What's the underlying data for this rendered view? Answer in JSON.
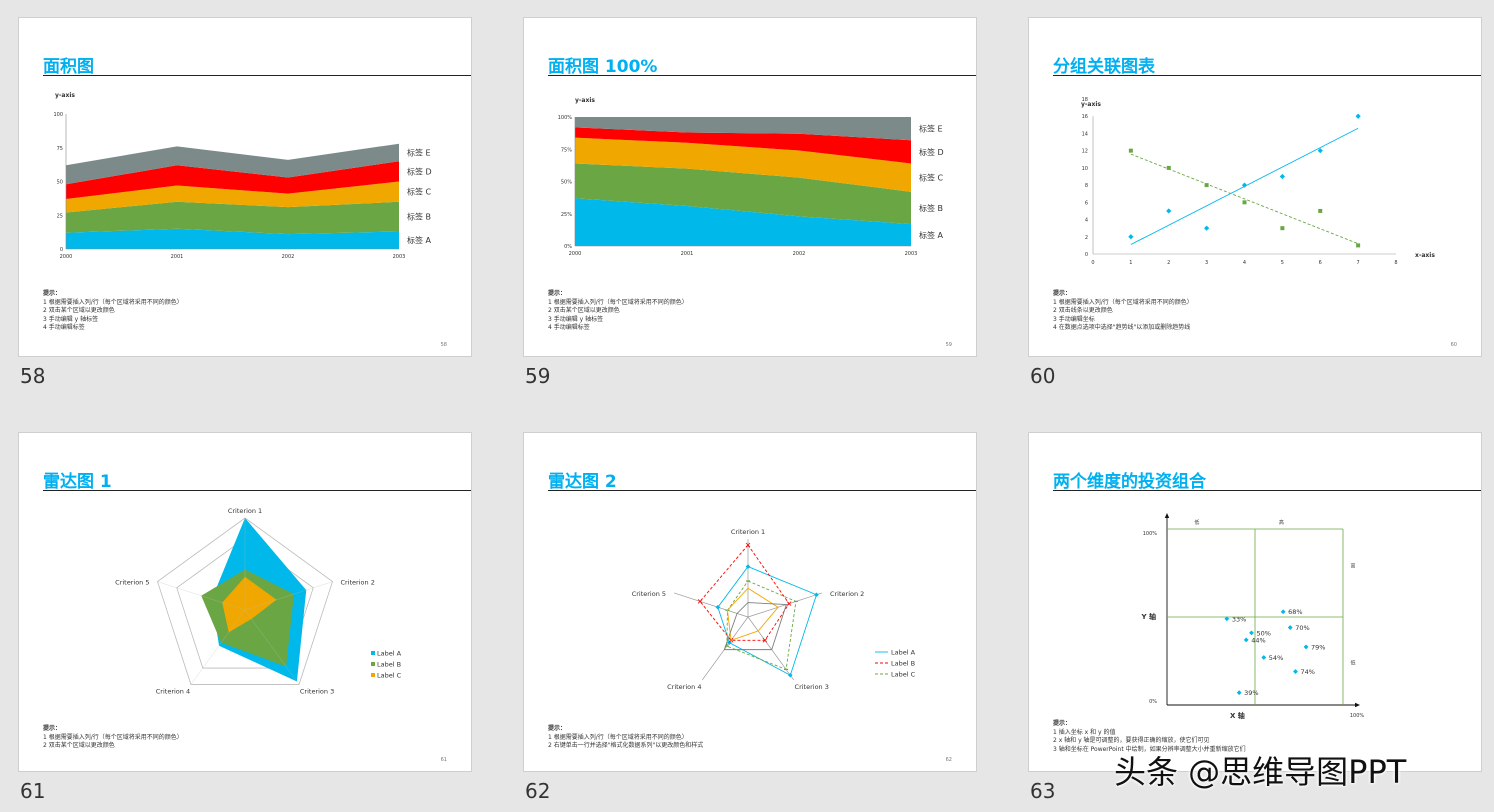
{
  "colors": {
    "blue": "#00b8ea",
    "green": "#6aa744",
    "orange": "#f0a800",
    "red": "#ff0000",
    "gray": "#7c8b8a",
    "title": "#00b0f0"
  },
  "watermark": "头条 @思维导图PPT",
  "slides": [
    {
      "number": "58",
      "title": "面积图",
      "page": "58",
      "tips": [
        "提示：",
        "1 根据需要插入列/行（每个区域将采用不同的颜色）",
        "2 双击某个区域以更改颜色",
        "3 手动编辑 y 轴标签",
        "4 手动编辑标签"
      ],
      "chart_data": {
        "type": "area",
        "stacked": true,
        "ylabel": "y-axis",
        "x": [
          "2000",
          "2001",
          "2002",
          "2003"
        ],
        "ylim": [
          0,
          100
        ],
        "yticks": [
          "0",
          "25",
          "50",
          "75",
          "100"
        ],
        "series": [
          {
            "name": "标签 A",
            "values": [
              12,
              15,
              11,
              13
            ],
            "color": "#00b8ea"
          },
          {
            "name": "标签 B",
            "values": [
              15,
              20,
              20,
              22
            ],
            "color": "#6aa744"
          },
          {
            "name": "标签 C",
            "values": [
              10,
              12,
              10,
              15
            ],
            "color": "#f0a800"
          },
          {
            "name": "标签 D",
            "values": [
              11,
              15,
              12,
              15
            ],
            "color": "#ff0000"
          },
          {
            "name": "标签 E",
            "values": [
              14,
              14,
              13,
              13
            ],
            "color": "#7c8b8a"
          }
        ]
      }
    },
    {
      "number": "59",
      "title": "面积图 100%",
      "page": "59",
      "tips": [
        "提示：",
        "1 根据需要插入列/行（每个区域将采用不同的颜色）",
        "2 双击某个区域以更改颜色",
        "3 手动编辑 y 轴标签",
        "4 手动编辑标签"
      ],
      "chart_data": {
        "type": "area",
        "stacked": true,
        "percent": true,
        "ylabel": "y-axis",
        "x": [
          "2000",
          "2001",
          "2002",
          "2003"
        ],
        "ylim": [
          0,
          100
        ],
        "yticks": [
          "0%",
          "25%",
          "50%",
          "75%",
          "100%"
        ],
        "series": [
          {
            "name": "标签 A",
            "values": [
              37,
              31,
              23,
              17
            ],
            "color": "#00b8ea"
          },
          {
            "name": "标签 B",
            "values": [
              27,
              29,
              30,
              25
            ],
            "color": "#6aa744"
          },
          {
            "name": "标签 C",
            "values": [
              20,
              20,
              21,
              22
            ],
            "color": "#f0a800"
          },
          {
            "name": "标签 D",
            "values": [
              8,
              8,
              13,
              18
            ],
            "color": "#ff0000"
          },
          {
            "name": "标签 E",
            "values": [
              8,
              12,
              13,
              18
            ],
            "color": "#7c8b8a"
          }
        ]
      }
    },
    {
      "number": "60",
      "title": "分组关联图表",
      "page": "60",
      "tips": [
        "提示：",
        "1 根据需要插入列/行（每个区域将采用不同的颜色）",
        "2 双击线条以更改颜色",
        "3 手动编辑坐标",
        "4 在数据点选项中选择\"趋势线\"以添加或删除趋势线"
      ],
      "chart_data": {
        "type": "scatter",
        "ylabel": "y-axis",
        "xlabel": "x-axis",
        "xlim": [
          0,
          8
        ],
        "ylim": [
          0,
          18
        ],
        "xticks": [
          "0",
          "1",
          "2",
          "3",
          "4",
          "5",
          "6",
          "7",
          "8"
        ],
        "yticks": [
          "0",
          "2",
          "4",
          "6",
          "8",
          "10",
          "12",
          "14",
          "16",
          "18"
        ],
        "series": [
          {
            "points": [
              [
                1,
                2
              ],
              [
                2,
                5
              ],
              [
                3,
                3
              ],
              [
                4,
                8
              ],
              [
                5,
                9
              ],
              [
                6,
                12
              ],
              [
                7,
                16
              ]
            ],
            "color": "#00b8ea",
            "marker": "diamond",
            "trend": [
              [
                1,
                1.1
              ],
              [
                7,
                14.6
              ]
            ]
          },
          {
            "points": [
              [
                1,
                12
              ],
              [
                2,
                10
              ],
              [
                3,
                8
              ],
              [
                4,
                6
              ],
              [
                5,
                3
              ],
              [
                6,
                5
              ],
              [
                7,
                1
              ]
            ],
            "color": "#6aa744",
            "marker": "square",
            "trend": [
              [
                1,
                11.6
              ],
              [
                7,
                1.2
              ]
            ]
          }
        ]
      }
    },
    {
      "number": "61",
      "title": "雷达图 1",
      "page": "61",
      "tips": [
        "提示：",
        "1 根据需要插入列/行（每个区域将采用不同的颜色）",
        "2 双击某个区域以更改颜色"
      ],
      "chart_data": {
        "type": "radar",
        "filled": true,
        "categories": [
          "Criterion 1",
          "Criterion 2",
          "Criterion 3",
          "Criterion 4",
          "Criterion 5"
        ],
        "max": 5,
        "series": [
          {
            "name": "Label A",
            "values": [
              5,
              3.5,
              4.8,
              2.4,
              1.9
            ],
            "color": "#00b8ea"
          },
          {
            "name": "Label B",
            "values": [
              2.2,
              2.8,
              3.8,
              2.2,
              2.5
            ],
            "color": "#6aa744"
          },
          {
            "name": "Label C",
            "values": [
              1.8,
              1.8,
              0.6,
              1.5,
              1.3
            ],
            "color": "#f0a800"
          }
        ]
      }
    },
    {
      "number": "62",
      "title": "雷达图 2",
      "page": "62",
      "tips": [
        "提示：",
        "1 根据需要插入列/行（每个区域将采用不同的颜色）",
        "2 右键单击一行并选择\"格式化数据系列\"以更改颜色和样式"
      ],
      "chart_data": {
        "type": "radar",
        "filled": false,
        "categories": [
          "Criterion 1",
          "Criterion 2",
          "Criterion 3",
          "Criterion 4",
          "Criterion 5"
        ],
        "max": 5,
        "series": [
          {
            "name": "Label A",
            "values": [
              3.5,
              5,
              5,
              2.2,
              2.2
            ],
            "color": "#00b8ea",
            "marker": "diamond",
            "dash": ""
          },
          {
            "name": "Label B",
            "values": [
              5,
              3,
              2,
              2,
              3.5
            ],
            "color": "#ff0000",
            "marker": "x",
            "dash": "3,2"
          },
          {
            "name": "Label C",
            "values": [
              2.5,
              3.5,
              4.5,
              2.5,
              1.5
            ],
            "color": "#6aa744",
            "marker": "dash",
            "dash": "3,2"
          },
          {
            "name": "",
            "values": [
              2,
              2.2,
              1.2,
              2,
              1.5
            ],
            "color": "#f0a800",
            "marker": "none",
            "dash": ""
          },
          {
            "name": "",
            "values": [
              1,
              2.8,
              2.8,
              2.8,
              0.8
            ],
            "color": "#7f7f7f",
            "marker": "none",
            "dash": ""
          }
        ]
      }
    },
    {
      "number": "63",
      "title": "两个维度的投资组合",
      "page": "",
      "tips": [
        "提示：",
        "1 插入坐标 x 和 y 的值",
        "2 x 轴和 y 轴是可调整的，要获得正确的缩放，使它们可见",
        "3 轴和坐标在 PowerPoint 中绘制，如果分辨率调整大小并重新缩放它们"
      ],
      "chart_data": {
        "type": "scatter",
        "xlabel": "X 轴",
        "ylabel": "Y 轴",
        "ytick_top": "100%",
        "ytick_bottom": "0%",
        "xtick_right": "100%",
        "top_labels": [
          "低",
          "高"
        ],
        "right_labels": [
          "高",
          "低"
        ],
        "xlim": [
          0,
          100
        ],
        "ylim": [
          0,
          100
        ],
        "points": [
          {
            "label": "33%",
            "x": 34,
            "y": 49
          },
          {
            "label": "68%",
            "x": 66,
            "y": 53
          },
          {
            "label": "50%",
            "x": 48,
            "y": 41
          },
          {
            "label": "70%",
            "x": 70,
            "y": 44
          },
          {
            "label": "44%",
            "x": 45,
            "y": 37
          },
          {
            "label": "79%",
            "x": 79,
            "y": 33
          },
          {
            "label": "54%",
            "x": 55,
            "y": 27
          },
          {
            "label": "74%",
            "x": 73,
            "y": 19
          },
          {
            "label": "39%",
            "x": 41,
            "y": 7
          }
        ]
      }
    }
  ]
}
